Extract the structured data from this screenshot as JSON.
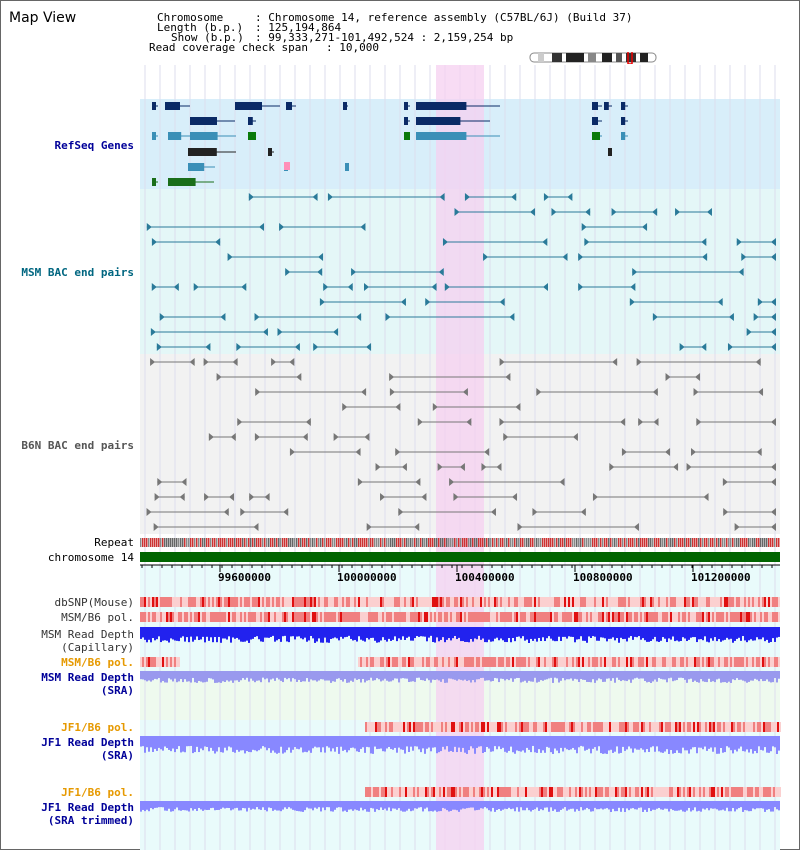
{
  "page": {
    "title": "Map View"
  },
  "info": {
    "chromosome_key": "Chromosome",
    "chromosome_val": ": Chromosome 14, reference assembly (C57BL/6J) (Build 37)",
    "length_key": "Length (b.p.)",
    "length_val": ": 125,194,864",
    "show_key": "Show (b.p.)",
    "show_val": ": 99,333,271-101,492,524 : 2,159,254 bp",
    "span_key": "Read coverage check span",
    "span_val": ": 10,000"
  },
  "tracks": {
    "refseq": "RefSeq Genes",
    "msm_bac": "MSM BAC end pairs",
    "b6n_bac": "B6N BAC end pairs",
    "repeat": "Repeat",
    "chromosome": "chromosome 14",
    "dbsnp": "dbSNP(Mouse)",
    "msm_b6_pol_1": "MSM/B6 pol.",
    "msm_depth_cap_1": "MSM Read Depth",
    "msm_depth_cap_2": "(Capillary)",
    "msm_b6_pol_2": "MSM/B6 pol.",
    "msm_depth_sra_1": "MSM Read Depth",
    "msm_depth_sra_2": "(SRA)",
    "jf1_b6_pol_1": "JF1/B6 pol.",
    "jf1_depth_sra_1": "JF1 Read Depth",
    "jf1_depth_sra_2": "(SRA)",
    "jf1_b6_pol_2": "JF1/B6 pol.",
    "jf1_depth_trim_1": "JF1 Read Depth",
    "jf1_depth_trim_2": "(SRA trimmed)"
  },
  "ruler": {
    "ticks": [
      "99600000",
      "100000000",
      "100400000",
      "100800000",
      "101200000"
    ]
  },
  "colors": {
    "refseq_bg": "#d8eefa",
    "bac_bg": "#e4f7f7",
    "highlight": "#f6d0f0",
    "chromosome_bar": "#006400",
    "depth_blue": "#2222ee",
    "depth_light": "#8888ff",
    "snp_red": "#e84040",
    "label_blue": "#000099",
    "label_teal": "#006680",
    "label_orange": "#e69900"
  }
}
